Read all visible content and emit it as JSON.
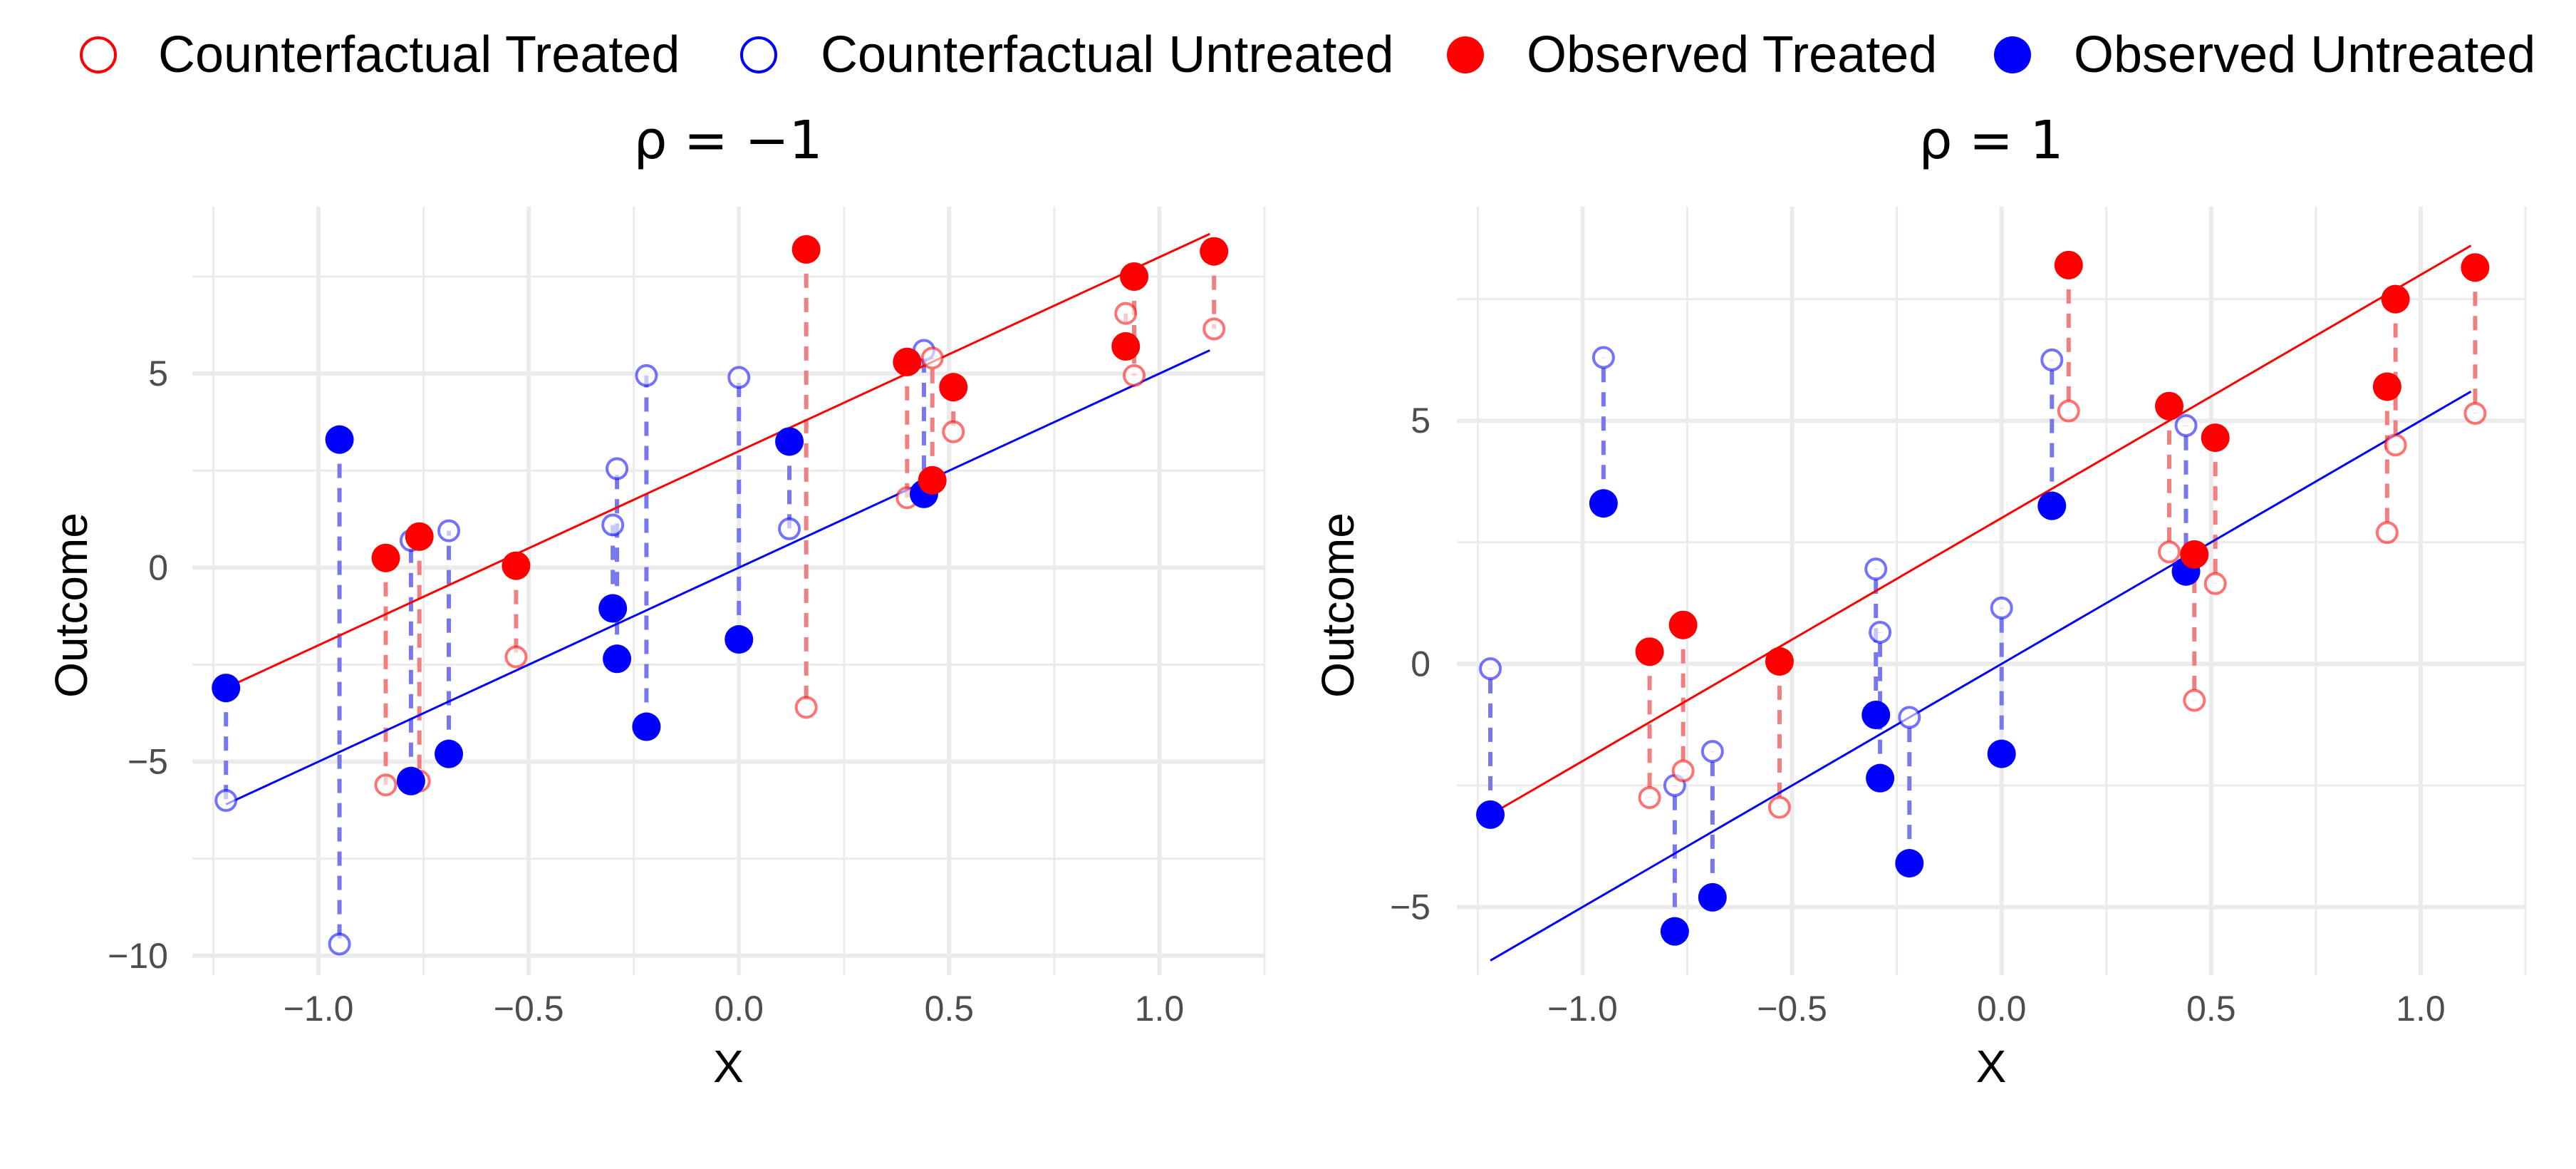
{
  "legend": [
    {
      "label": "Counterfactual Treated",
      "color": "#ff0000",
      "filled": false
    },
    {
      "label": "Counterfactual Untreated",
      "color": "#0000ff",
      "filled": false
    },
    {
      "label": "Observed Treated",
      "color": "#ff0000",
      "filled": true
    },
    {
      "label": "Observed Untreated",
      "color": "#0000ff",
      "filled": true
    }
  ],
  "colors": {
    "treated": "#ff0000",
    "untreated": "#0000ff",
    "treated_dash": "#f08080",
    "untreated_dash": "#7777ee",
    "grid": "#ebebeb",
    "tick_text": "#4d4d4d"
  },
  "chart_data": [
    {
      "type": "scatter",
      "title": "ρ = −1",
      "xlabel": "X",
      "ylabel": "Outcome",
      "xlim": [
        -1.3,
        1.25
      ],
      "ylim": [
        -10.5,
        9.3
      ],
      "xticks": [
        -1.0,
        -0.5,
        0.0,
        0.5,
        1.0
      ],
      "xtick_labels": [
        "−1.0",
        "−0.5",
        "0.0",
        "0.5",
        "1.0"
      ],
      "yticks": [
        -10,
        -5,
        0,
        5
      ],
      "ytick_labels": [
        "−10",
        "−5",
        "0",
        "5"
      ],
      "grid": true,
      "fit_lines": [
        {
          "group": "treated",
          "x": [
            -1.22,
            1.12
          ],
          "y": [
            -3.1,
            8.6
          ]
        },
        {
          "group": "untreated",
          "x": [
            -1.22,
            1.12
          ],
          "y": [
            -6.1,
            5.6
          ]
        }
      ],
      "units": [
        {
          "x": -1.22,
          "observed": -3.1,
          "counterfactual": -6.0,
          "group": "untreated"
        },
        {
          "x": -0.95,
          "observed": 3.3,
          "counterfactual": -9.7,
          "group": "untreated"
        },
        {
          "x": -0.78,
          "observed": -5.5,
          "counterfactual": 0.7,
          "group": "untreated"
        },
        {
          "x": -0.69,
          "observed": -4.8,
          "counterfactual": 0.95,
          "group": "untreated"
        },
        {
          "x": -0.3,
          "observed": -1.05,
          "counterfactual": 1.1,
          "group": "untreated"
        },
        {
          "x": -0.29,
          "observed": -2.35,
          "counterfactual": 2.55,
          "group": "untreated"
        },
        {
          "x": -0.22,
          "observed": -4.1,
          "counterfactual": 4.95,
          "group": "untreated"
        },
        {
          "x": 0.0,
          "observed": -1.85,
          "counterfactual": 4.9,
          "group": "untreated"
        },
        {
          "x": 0.12,
          "observed": 3.25,
          "counterfactual": 1.0,
          "group": "untreated"
        },
        {
          "x": 0.44,
          "observed": 1.9,
          "counterfactual": 5.6,
          "group": "untreated"
        },
        {
          "x": -0.84,
          "observed": 0.25,
          "counterfactual": -5.6,
          "group": "treated"
        },
        {
          "x": -0.76,
          "observed": 0.8,
          "counterfactual": -5.5,
          "group": "treated"
        },
        {
          "x": -0.53,
          "observed": 0.05,
          "counterfactual": -2.3,
          "group": "treated"
        },
        {
          "x": 0.16,
          "observed": 8.2,
          "counterfactual": -3.6,
          "group": "treated"
        },
        {
          "x": 0.4,
          "observed": 5.3,
          "counterfactual": 1.8,
          "group": "treated"
        },
        {
          "x": 0.46,
          "observed": 2.25,
          "counterfactual": 5.4,
          "group": "treated"
        },
        {
          "x": 0.51,
          "observed": 4.65,
          "counterfactual": 3.5,
          "group": "treated"
        },
        {
          "x": 0.92,
          "observed": 5.7,
          "counterfactual": 6.55,
          "group": "treated"
        },
        {
          "x": 0.94,
          "observed": 7.5,
          "counterfactual": 4.95,
          "group": "treated"
        },
        {
          "x": 1.13,
          "observed": 8.15,
          "counterfactual": 6.15,
          "group": "treated"
        }
      ]
    },
    {
      "type": "scatter",
      "title": "ρ = 1",
      "xlabel": "X",
      "ylabel": "Outcome",
      "xlim": [
        -1.3,
        1.25
      ],
      "ylim": [
        -6.4,
        9.4
      ],
      "xticks": [
        -1.0,
        -0.5,
        0.0,
        0.5,
        1.0
      ],
      "xtick_labels": [
        "−1.0",
        "−0.5",
        "0.0",
        "0.5",
        "1.0"
      ],
      "yticks": [
        -5,
        0,
        5
      ],
      "ytick_labels": [
        "−5",
        "0",
        "5"
      ],
      "grid": true,
      "fit_lines": [
        {
          "group": "treated",
          "x": [
            -1.22,
            1.12
          ],
          "y": [
            -3.1,
            8.6
          ]
        },
        {
          "group": "untreated",
          "x": [
            -1.22,
            1.12
          ],
          "y": [
            -6.1,
            5.6
          ]
        }
      ],
      "units": [
        {
          "x": -1.22,
          "observed": -3.1,
          "counterfactual": -0.1,
          "group": "untreated"
        },
        {
          "x": -0.95,
          "observed": 3.3,
          "counterfactual": 6.3,
          "group": "untreated"
        },
        {
          "x": -0.78,
          "observed": -5.5,
          "counterfactual": -2.5,
          "group": "untreated"
        },
        {
          "x": -0.69,
          "observed": -4.8,
          "counterfactual": -1.8,
          "group": "untreated"
        },
        {
          "x": -0.3,
          "observed": -1.05,
          "counterfactual": 1.95,
          "group": "untreated"
        },
        {
          "x": -0.29,
          "observed": -2.35,
          "counterfactual": 0.65,
          "group": "untreated"
        },
        {
          "x": -0.22,
          "observed": -4.1,
          "counterfactual": -1.1,
          "group": "untreated"
        },
        {
          "x": 0.0,
          "observed": -1.85,
          "counterfactual": 1.15,
          "group": "untreated"
        },
        {
          "x": 0.12,
          "observed": 3.25,
          "counterfactual": 6.25,
          "group": "untreated"
        },
        {
          "x": 0.44,
          "observed": 1.9,
          "counterfactual": 4.9,
          "group": "untreated"
        },
        {
          "x": -0.84,
          "observed": 0.25,
          "counterfactual": -2.75,
          "group": "treated"
        },
        {
          "x": -0.76,
          "observed": 0.8,
          "counterfactual": -2.2,
          "group": "treated"
        },
        {
          "x": -0.53,
          "observed": 0.05,
          "counterfactual": -2.95,
          "group": "treated"
        },
        {
          "x": 0.16,
          "observed": 8.2,
          "counterfactual": 5.2,
          "group": "treated"
        },
        {
          "x": 0.4,
          "observed": 5.3,
          "counterfactual": 2.3,
          "group": "treated"
        },
        {
          "x": 0.46,
          "observed": 2.25,
          "counterfactual": -0.75,
          "group": "treated"
        },
        {
          "x": 0.51,
          "observed": 4.65,
          "counterfactual": 1.65,
          "group": "treated"
        },
        {
          "x": 0.92,
          "observed": 5.7,
          "counterfactual": 2.7,
          "group": "treated"
        },
        {
          "x": 0.94,
          "observed": 7.5,
          "counterfactual": 4.5,
          "group": "treated"
        },
        {
          "x": 1.13,
          "observed": 8.15,
          "counterfactual": 5.15,
          "group": "treated"
        }
      ]
    }
  ]
}
